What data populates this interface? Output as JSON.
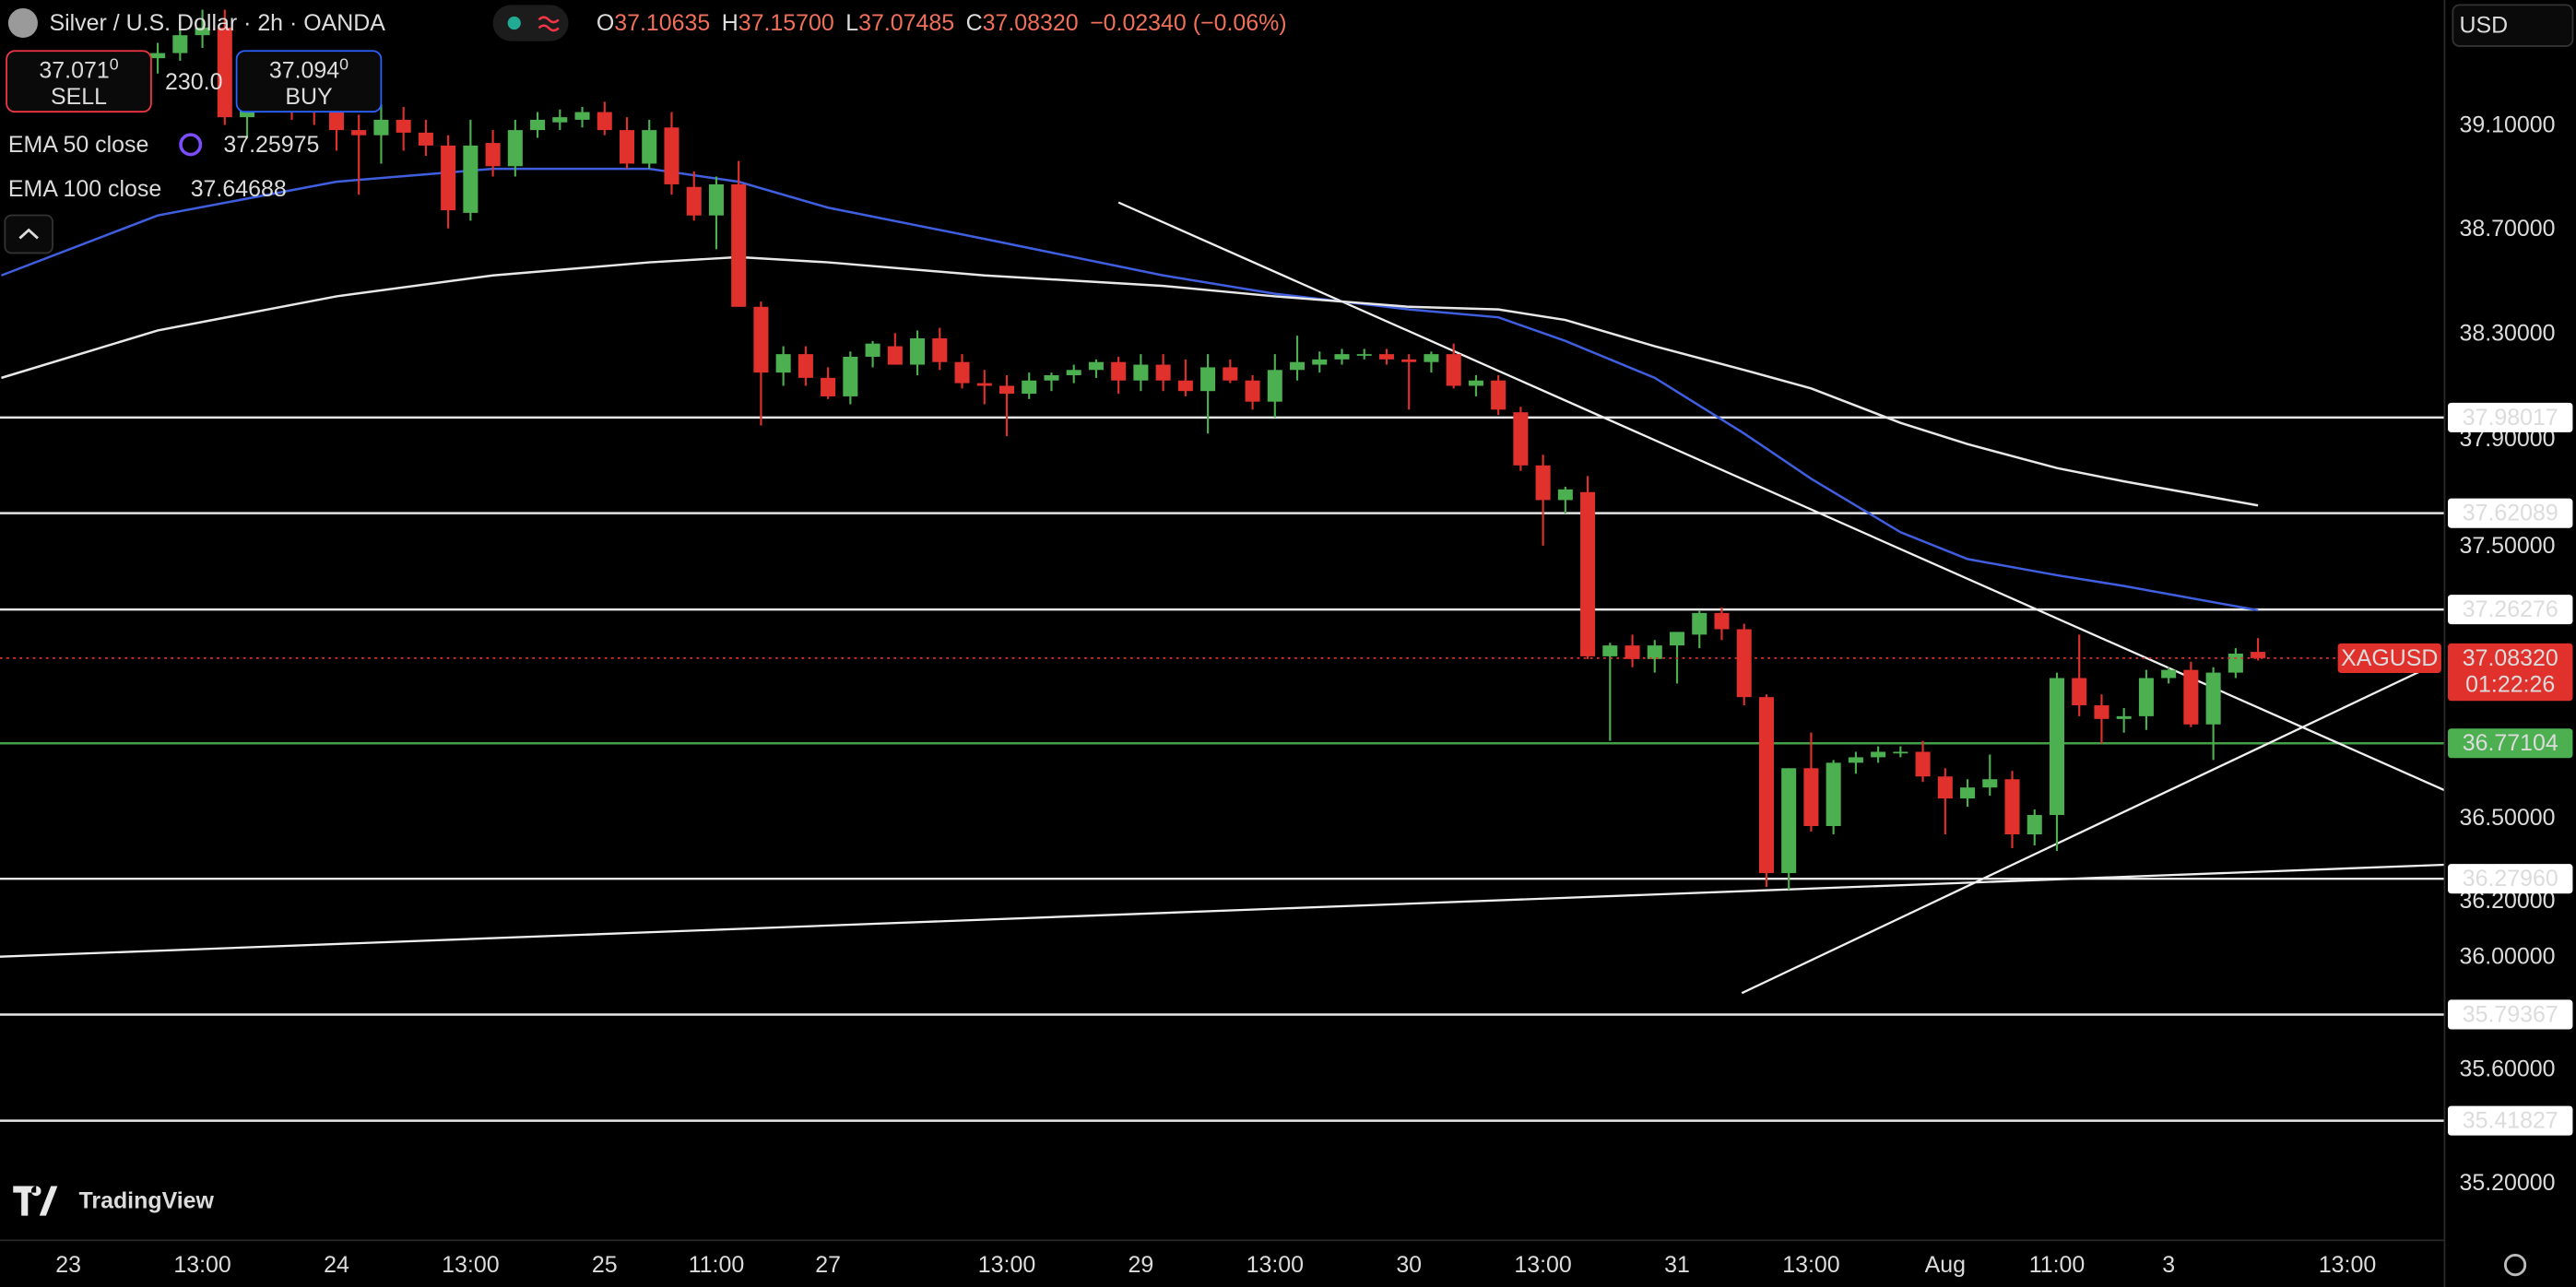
{
  "header": {
    "title": "Silver / U.S. Dollar · 2h · OANDA",
    "ohlc": [
      {
        "key": "O",
        "value": "37.10635"
      },
      {
        "key": "H",
        "value": "37.15700"
      },
      {
        "key": "L",
        "value": "37.07485"
      },
      {
        "key": "C",
        "value": "37.08320"
      }
    ],
    "change": "−0.02340 (−0.06%)",
    "sell": {
      "price": "37.071",
      "sup": "0",
      "label": "SELL"
    },
    "spread": "230.0",
    "buy": {
      "price": "37.094",
      "sup": "0",
      "label": "BUY"
    },
    "currency": "USD",
    "logo": "TradingView"
  },
  "chart_data": {
    "type": "candlestick",
    "ylog": true,
    "grid": false,
    "up_color": "#4caf50",
    "down_color": "#e0312d",
    "xlim": [
      -7.06,
      102.35
    ],
    "ylim": [
      35.0,
      39.588
    ],
    "yticks": [
      {
        "value": 39.1,
        "label": "39.10000"
      },
      {
        "value": 38.7,
        "label": "38.70000"
      },
      {
        "value": 38.3,
        "label": "38.30000"
      },
      {
        "value": 37.9,
        "label": "37.90000"
      },
      {
        "value": 37.5,
        "label": "37.50000"
      },
      {
        "value": 36.5,
        "label": "36.50000"
      },
      {
        "value": 36.2,
        "label": "36.20000"
      },
      {
        "value": 36.0,
        "label": "36.00000"
      },
      {
        "value": 35.6,
        "label": "35.60000"
      },
      {
        "value": 35.2,
        "label": "35.20000"
      }
    ],
    "xticks": [
      {
        "value": -4,
        "label": "23"
      },
      {
        "value": 2,
        "label": "13:00"
      },
      {
        "value": 8,
        "label": "24"
      },
      {
        "value": 14,
        "label": "13:00"
      },
      {
        "value": 20,
        "label": "25"
      },
      {
        "value": 25,
        "label": "11:00"
      },
      {
        "value": 30,
        "label": "27"
      },
      {
        "value": 38,
        "label": "13:00"
      },
      {
        "value": 44,
        "label": "29"
      },
      {
        "value": 50,
        "label": "13:00"
      },
      {
        "value": 56,
        "label": "30"
      },
      {
        "value": 62,
        "label": "13:00"
      },
      {
        "value": 68,
        "label": "31"
      },
      {
        "value": 74,
        "label": "13:00"
      },
      {
        "value": 80,
        "label": "Aug"
      },
      {
        "value": 85,
        "label": "11:00"
      },
      {
        "value": 90,
        "label": "3"
      },
      {
        "value": 98,
        "label": "13:00"
      }
    ],
    "candles": {
      "x": [
        0,
        1,
        2,
        3,
        4,
        5,
        6,
        7,
        8,
        9,
        10,
        11,
        12,
        13,
        14,
        15,
        16,
        17,
        18,
        19,
        20,
        21,
        22,
        23,
        24,
        25,
        26,
        27,
        28,
        29,
        30,
        31,
        32,
        33,
        34,
        35,
        36,
        37,
        38,
        39,
        40,
        41,
        42,
        43,
        44,
        45,
        46,
        47,
        48,
        49,
        50,
        51,
        52,
        53,
        54,
        55,
        56,
        57,
        58,
        59,
        60,
        61,
        62,
        63,
        64,
        65,
        66,
        67,
        68,
        69,
        70,
        71,
        72,
        73,
        74,
        75,
        76,
        77,
        78,
        79,
        80,
        81,
        82,
        83,
        84,
        85,
        86,
        87,
        88,
        89,
        90,
        91,
        92,
        93,
        94
      ],
      "open": [
        39.36,
        39.38,
        39.45,
        39.48,
        39.13,
        39.2,
        39.24,
        39.18,
        39.15,
        39.08,
        39.06,
        39.12,
        39.07,
        39.02,
        38.76,
        39.03,
        38.94,
        39.08,
        39.11,
        39.12,
        39.15,
        39.08,
        38.95,
        39.09,
        38.86,
        38.75,
        38.87,
        38.4,
        38.15,
        38.22,
        38.13,
        38.06,
        38.21,
        38.25,
        38.18,
        38.28,
        38.19,
        38.11,
        38.1,
        38.07,
        38.12,
        38.14,
        38.16,
        38.19,
        38.12,
        38.18,
        38.12,
        38.08,
        38.17,
        38.12,
        38.04,
        38.16,
        38.18,
        38.2,
        38.22,
        38.22,
        38.2,
        38.19,
        38.22,
        38.1,
        38.12,
        38.0,
        37.8,
        37.67,
        37.7,
        37.09,
        37.13,
        37.08,
        37.13,
        37.17,
        37.25,
        37.19,
        36.94,
        36.3,
        36.68,
        36.47,
        36.7,
        36.72,
        36.74,
        36.74,
        36.65,
        36.57,
        36.61,
        36.64,
        36.44,
        36.51,
        37.01,
        36.91,
        36.86,
        36.87,
        37.01,
        37.04,
        36.84,
        37.03,
        37.10635
      ],
      "high": [
        39.42,
        39.5,
        39.55,
        39.55,
        39.25,
        39.3,
        39.3,
        39.25,
        39.22,
        39.14,
        39.18,
        39.17,
        39.12,
        39.06,
        39.12,
        39.08,
        39.12,
        39.15,
        39.16,
        39.17,
        39.19,
        39.13,
        39.12,
        39.15,
        38.92,
        38.9,
        38.96,
        38.42,
        38.25,
        38.25,
        38.17,
        38.23,
        38.27,
        38.3,
        38.31,
        38.32,
        38.22,
        38.16,
        38.14,
        38.15,
        38.15,
        38.18,
        38.2,
        38.21,
        38.22,
        38.22,
        38.2,
        38.22,
        38.2,
        38.14,
        38.22,
        38.29,
        38.23,
        38.24,
        38.24,
        38.24,
        38.22,
        38.23,
        38.26,
        38.14,
        38.14,
        38.02,
        37.84,
        37.72,
        37.76,
        37.14,
        37.17,
        37.15,
        37.18,
        37.26,
        37.27,
        37.21,
        36.95,
        36.68,
        36.81,
        36.71,
        36.74,
        36.76,
        36.76,
        36.78,
        36.68,
        36.64,
        36.73,
        36.67,
        36.53,
        37.03,
        37.17,
        36.95,
        36.9,
        37.04,
        37.05,
        37.07,
        37.05,
        37.12,
        37.157
      ],
      "low": [
        39.3,
        39.35,
        39.4,
        39.1,
        39.05,
        39.15,
        39.12,
        39.1,
        39.0,
        38.83,
        38.95,
        39.0,
        38.98,
        38.7,
        38.73,
        38.9,
        38.9,
        39.05,
        39.08,
        39.09,
        39.06,
        38.93,
        38.93,
        38.83,
        38.73,
        38.62,
        38.4,
        37.95,
        38.1,
        38.1,
        38.05,
        38.03,
        38.17,
        38.18,
        38.14,
        38.16,
        38.09,
        38.03,
        37.91,
        38.05,
        38.08,
        38.11,
        38.13,
        38.07,
        38.08,
        38.08,
        38.06,
        37.92,
        38.11,
        38.01,
        37.98,
        38.12,
        38.15,
        38.18,
        38.2,
        38.18,
        38.01,
        38.15,
        38.09,
        38.06,
        37.99,
        37.78,
        37.5,
        37.62,
        37.08,
        36.78,
        37.05,
        37.03,
        36.99,
        37.12,
        37.15,
        36.91,
        36.25,
        36.24,
        36.45,
        36.44,
        36.66,
        36.7,
        36.72,
        36.63,
        36.44,
        36.54,
        36.58,
        36.39,
        36.4,
        36.38,
        36.87,
        36.77,
        36.81,
        36.82,
        36.99,
        36.83,
        36.71,
        37.01,
        37.07485
      ],
      "close": [
        39.38,
        39.45,
        39.48,
        39.13,
        39.2,
        39.24,
        39.18,
        39.15,
        39.08,
        39.06,
        39.12,
        39.07,
        39.02,
        38.77,
        39.02,
        38.94,
        39.08,
        39.12,
        39.13,
        39.15,
        39.08,
        38.95,
        39.08,
        38.87,
        38.75,
        38.87,
        38.4,
        38.15,
        38.22,
        38.13,
        38.06,
        38.21,
        38.26,
        38.18,
        38.28,
        38.19,
        38.11,
        38.1,
        38.07,
        38.12,
        38.14,
        38.16,
        38.19,
        38.12,
        38.18,
        38.12,
        38.08,
        38.17,
        38.12,
        38.04,
        38.16,
        38.19,
        38.2,
        38.22,
        38.22,
        38.2,
        38.19,
        38.22,
        38.1,
        38.12,
        38.01,
        37.8,
        37.67,
        37.71,
        37.09,
        37.13,
        37.08,
        37.13,
        37.18,
        37.25,
        37.19,
        36.94,
        36.3,
        36.68,
        36.47,
        36.7,
        36.72,
        36.74,
        36.74,
        36.65,
        36.57,
        36.61,
        36.64,
        36.44,
        36.51,
        37.01,
        36.91,
        36.86,
        36.87,
        37.01,
        37.04,
        36.84,
        37.03,
        37.1,
        37.0832
      ]
    },
    "series": [
      {
        "name": "EMA 50 close",
        "legend_value": "37.25975",
        "color": "#3f5fe0",
        "x": [
          -7,
          0,
          8,
          15,
          22,
          26,
          30,
          37,
          45,
          50,
          56,
          60,
          63,
          67,
          71,
          74,
          78,
          81,
          85,
          88,
          94
        ],
        "values": [
          38.52,
          38.75,
          38.88,
          38.93,
          38.93,
          38.88,
          38.78,
          38.66,
          38.52,
          38.45,
          38.39,
          38.36,
          38.27,
          38.13,
          37.92,
          37.75,
          37.55,
          37.45,
          37.39,
          37.35,
          37.26
        ]
      },
      {
        "name": "EMA 100 close",
        "legend_value": "37.64688",
        "color": "#e8e8e8",
        "x": [
          -7,
          0,
          8,
          15,
          22,
          26,
          30,
          37,
          45,
          50,
          56,
          60,
          63,
          67,
          71,
          74,
          78,
          81,
          85,
          88,
          94
        ],
        "values": [
          38.13,
          38.31,
          38.44,
          38.52,
          38.57,
          38.59,
          38.57,
          38.52,
          38.48,
          38.44,
          38.4,
          38.39,
          38.35,
          38.25,
          38.16,
          38.09,
          37.96,
          37.88,
          37.79,
          37.74,
          37.65
        ]
      }
    ],
    "trend_lines": [
      {
        "x": [
          43.0,
          102.35
        ],
        "values": [
          38.8,
          36.6
        ]
      },
      {
        "x": [
          70.9,
          101.4
        ],
        "values": [
          35.87,
          37.04
        ]
      },
      {
        "x": [
          -7.06,
          102.35
        ],
        "values": [
          36.0,
          36.33
        ]
      }
    ],
    "levels": [
      {
        "value": 37.98017,
        "label": "37.98017",
        "color": "#ffffff"
      },
      {
        "value": 37.62089,
        "label": "37.62089",
        "color": "#ffffff"
      },
      {
        "value": 37.26276,
        "label": "37.26276",
        "color": "#ffffff"
      },
      {
        "value": 36.77104,
        "label": "36.77104",
        "color": "#4caf50"
      },
      {
        "value": 36.2796,
        "label": "36.27960",
        "color": "#ffffff"
      },
      {
        "value": 35.79367,
        "label": "35.79367",
        "color": "#ffffff"
      },
      {
        "value": 35.41827,
        "label": "35.41827",
        "color": "#ffffff"
      }
    ],
    "price_line": {
      "value": 37.0832,
      "label": "37.08320",
      "symbol": "XAGUSD",
      "countdown": "01:22:26",
      "color": "#e0312d"
    }
  }
}
